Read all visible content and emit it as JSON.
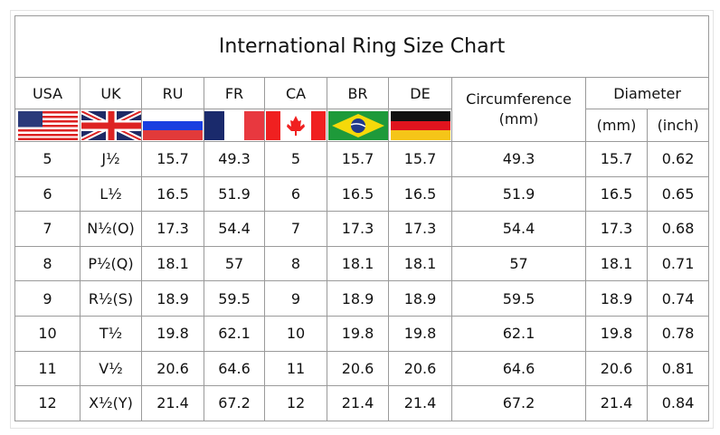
{
  "title": "International Ring Size Chart",
  "headers": {
    "countries": [
      "USA",
      "UK",
      "RU",
      "FR",
      "CA",
      "BR",
      "DE"
    ],
    "circumference": "Circumference\n(mm)",
    "diameter": "Diameter",
    "diameter_mm": "(mm)",
    "diameter_inch": "(inch)"
  },
  "flags": [
    "usa-flag",
    "uk-flag",
    "russia-flag",
    "france-flag",
    "canada-flag",
    "brazil-flag",
    "germany-flag"
  ],
  "rows": [
    [
      "5",
      "J½",
      "15.7",
      "49.3",
      "5",
      "15.7",
      "15.7",
      "49.3",
      "15.7",
      "0.62"
    ],
    [
      "6",
      "L½",
      "16.5",
      "51.9",
      "6",
      "16.5",
      "16.5",
      "51.9",
      "16.5",
      "0.65"
    ],
    [
      "7",
      "N½(O)",
      "17.3",
      "54.4",
      "7",
      "17.3",
      "17.3",
      "54.4",
      "17.3",
      "0.68"
    ],
    [
      "8",
      "P½(Q)",
      "18.1",
      "57",
      "8",
      "18.1",
      "18.1",
      "57",
      "18.1",
      "0.71"
    ],
    [
      "9",
      "R½(S)",
      "18.9",
      "59.5",
      "9",
      "18.9",
      "18.9",
      "59.5",
      "18.9",
      "0.74"
    ],
    [
      "10",
      "T½",
      "19.8",
      "62.1",
      "10",
      "19.8",
      "19.8",
      "62.1",
      "19.8",
      "0.78"
    ],
    [
      "11",
      "V½",
      "20.6",
      "64.6",
      "11",
      "20.6",
      "20.6",
      "64.6",
      "20.6",
      "0.81"
    ],
    [
      "12",
      "X½(Y)",
      "21.4",
      "67.2",
      "12",
      "21.4",
      "21.4",
      "67.2",
      "21.4",
      "0.84"
    ]
  ]
}
